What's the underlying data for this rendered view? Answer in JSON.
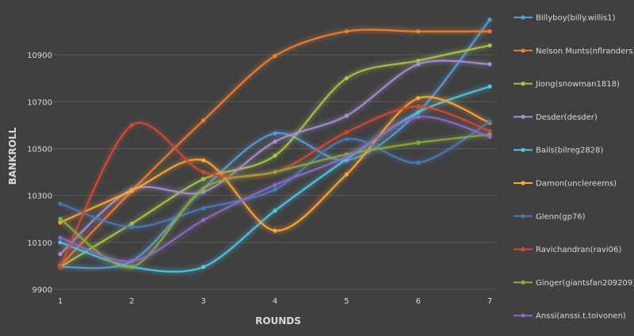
{
  "chart_data": {
    "type": "line",
    "title": "",
    "xlabel": "ROUNDS",
    "ylabel": "BANKROLL",
    "x": [
      1,
      2,
      3,
      4,
      5,
      6,
      7
    ],
    "ylim": [
      9900,
      11100
    ],
    "yticks": [
      9900,
      10100,
      10300,
      10500,
      10700,
      10900
    ],
    "grid": true,
    "legend": "right",
    "series": [
      {
        "name": "Billyboy(billy.willis1)",
        "color": "#5b9bd5",
        "values": [
          9995,
          10020,
          10330,
          10565,
          10450,
          10655,
          11050
        ]
      },
      {
        "name": "Nelson Munts(nflranders)",
        "color": "#ed7d31",
        "values": [
          10000,
          10320,
          10620,
          10895,
          11000,
          11000,
          11000
        ]
      },
      {
        "name": "Jiong(snowman1818)",
        "color": "#a5c44a",
        "values": [
          9995,
          10180,
          10370,
          10470,
          10800,
          10875,
          10940
        ]
      },
      {
        "name": "Desder(desder)",
        "color": "#a58fd1",
        "values": [
          10050,
          10325,
          10315,
          10530,
          10640,
          10860,
          10860
        ]
      },
      {
        "name": "Bails(bilreg2828)",
        "color": "#4fc7e6",
        "values": [
          10100,
          9995,
          9995,
          10235,
          10455,
          10655,
          10765
        ]
      },
      {
        "name": "Damon(unclereems)",
        "color": "#ffa531",
        "values": [
          10185,
          10320,
          10450,
          10150,
          10390,
          10715,
          10610
        ]
      },
      {
        "name": "Glenn(gp76)",
        "color": "#4a79b8",
        "values": [
          10265,
          10165,
          10245,
          10325,
          10540,
          10440,
          10615
        ]
      },
      {
        "name": "Ravichandran(ravi06)",
        "color": "#d04a3a",
        "values": [
          9995,
          10600,
          10400,
          10400,
          10570,
          10680,
          10575
        ]
      },
      {
        "name": "Ginger(giantsfan209209)",
        "color": "#8ba93e",
        "values": [
          10200,
          9995,
          10330,
          10400,
          10475,
          10525,
          10560
        ]
      },
      {
        "name": "Anssi(anssi.t.toivonen)",
        "color": "#8c6cc0",
        "values": [
          10120,
          10020,
          10195,
          10345,
          10465,
          10635,
          10550
        ]
      }
    ]
  }
}
